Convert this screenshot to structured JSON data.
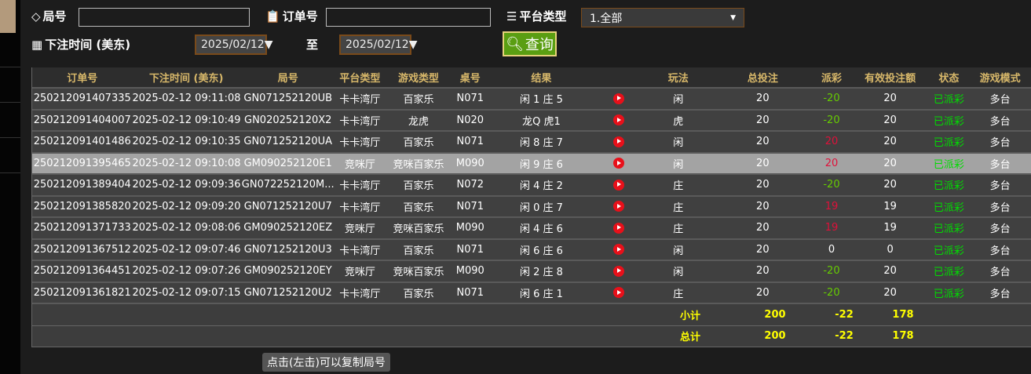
{
  "filters": {
    "round_label": "局号",
    "round_value": "",
    "order_label": "订单号",
    "order_value": "",
    "platform_label": "平台类型",
    "platform_selected": "1.全部",
    "time_label": "下注时间 (美东)",
    "date_from": "2025/02/12▼",
    "to_label": "至",
    "date_to": "2025/02/12▼",
    "query_label": "查询"
  },
  "table": {
    "headers": [
      "订单号",
      "下注时间 (美东)",
      "局号",
      "平台类型",
      "游戏类型",
      "桌号",
      "结果",
      "",
      "玩法",
      "总投注",
      "派彩",
      "有效投注额",
      "状态",
      "游戏模式"
    ],
    "rows": [
      [
        "250212091407335",
        "2025-02-12 09:11:08",
        "GN071252120UB",
        "卡卡湾厅",
        "百家乐",
        "N071",
        "闲 1 庄 5",
        "闲",
        "20",
        "-20",
        "20",
        "已派彩",
        "多台"
      ],
      [
        "250212091404007",
        "2025-02-12 09:10:49",
        "GN020252120X2",
        "卡卡湾厅",
        "龙虎",
        "N020",
        "龙Q 虎1",
        "虎",
        "20",
        "-20",
        "20",
        "已派彩",
        "多台"
      ],
      [
        "250212091401486",
        "2025-02-12 09:10:35",
        "GN071252120UA",
        "卡卡湾厅",
        "百家乐",
        "N071",
        "闲 8 庄 7",
        "闲",
        "20",
        "20",
        "20",
        "已派彩",
        "多台"
      ],
      [
        "250212091395465",
        "2025-02-12 09:10:08",
        "GM090252120E1",
        "竞咪厅",
        "竞咪百家乐",
        "M090",
        "闲 9 庄 6",
        "闲",
        "20",
        "20",
        "20",
        "已派彩",
        "多台"
      ],
      [
        "250212091389404",
        "2025-02-12 09:09:36",
        "GN072252120M...",
        "卡卡湾厅",
        "百家乐",
        "N072",
        "闲 4 庄 2",
        "庄",
        "20",
        "-20",
        "20",
        "已派彩",
        "多台"
      ],
      [
        "250212091385820",
        "2025-02-12 09:09:20",
        "GN071252120U7",
        "卡卡湾厅",
        "百家乐",
        "N071",
        "闲 0 庄 7",
        "庄",
        "20",
        "19",
        "19",
        "已派彩",
        "多台"
      ],
      [
        "250212091371733",
        "2025-02-12 09:08:06",
        "GM090252120EZ",
        "竞咪厅",
        "竞咪百家乐",
        "M090",
        "闲 4 庄 6",
        "庄",
        "20",
        "19",
        "19",
        "已派彩",
        "多台"
      ],
      [
        "250212091367512",
        "2025-02-12 09:07:46",
        "GN071252120U3",
        "卡卡湾厅",
        "百家乐",
        "N071",
        "闲 6 庄 6",
        "闲",
        "20",
        "0",
        "0",
        "已派彩",
        "多台"
      ],
      [
        "250212091364451",
        "2025-02-12 09:07:26",
        "GM090252120EY",
        "竞咪厅",
        "竞咪百家乐",
        "M090",
        "闲 2 庄 8",
        "闲",
        "20",
        "-20",
        "20",
        "已派彩",
        "多台"
      ],
      [
        "250212091361821",
        "2025-02-12 09:07:15",
        "GN071252120U2",
        "卡卡湾厅",
        "百家乐",
        "N071",
        "闲 6 庄 1",
        "庄",
        "20",
        "-20",
        "20",
        "已派彩",
        "多台"
      ]
    ],
    "subtotal": {
      "label": "小计",
      "total_bet": "200",
      "payout": "-22",
      "valid_bet": "178"
    },
    "total": {
      "label": "总计",
      "total_bet": "200",
      "payout": "-22",
      "valid_bet": "178"
    },
    "highlighted_row": 3
  },
  "tooltip": "点击(左击)可以复制局号",
  "colors": {
    "negative": "#66cc00",
    "positive": "#e0103a",
    "status": "#00dd00",
    "header": "#d8b86a",
    "summary": "#ffff00"
  }
}
